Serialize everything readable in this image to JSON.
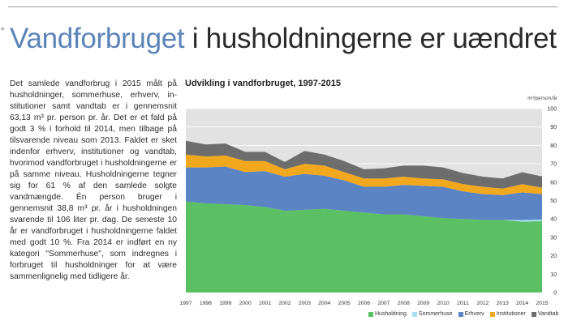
{
  "headline": {
    "accent": "Vandforbruget",
    "rest": " i husholdningerne er uændret",
    "accent_color": "#5b84b8"
  },
  "body_text": "Det samlede vandforbrug i 2015 målt på husholdninger, sommerhuse, erhverv, in­stitutioner samt vandtab er i gennemsnit 63,13 m³ pr. person pr. år. Det er et fald på godt 3 % i forhold til 2014, men tilba­ge på tilsvarende niveau som 2013. Fal­det er sket indenfor erhverv, institutioner og vandtab, hvorimod vandforbruget i hus­holdningerne er på samme niveau. Hus­holdningerne tegner sig for 61 % af den samlede solgte vandmængde. Én person bruger i gennemsnit 38,8 m³ pr. år i hus­holdningen svarende til 106 liter pr. dag. De seneste 10 år er vandforbruget i hus­holdningerne faldet med godt 10 %. Fra 2014 er indført en ny kategori \"Sommer­huse\", som indregnes i forbruget til hus­holdninger for at være sammenlignelig med tidligere år.",
  "chart_data": {
    "type": "area",
    "stacked": true,
    "title": "Udvikling i vandforbruget, 1997-2015",
    "ylabel": "m³/person/år",
    "ylim": [
      0,
      100
    ],
    "yticks": [
      0,
      10,
      20,
      30,
      40,
      50,
      60,
      70,
      80,
      90,
      100
    ],
    "grid": true,
    "legend_position": "bottom-right",
    "x": [
      "1997",
      "1998",
      "1999",
      "2000",
      "2001",
      "2002",
      "2003",
      "2004",
      "2005",
      "2006",
      "2007",
      "2008",
      "2009",
      "2010",
      "2011",
      "2012",
      "2013",
      "2014",
      "2015"
    ],
    "series": [
      {
        "name": "Husholdning",
        "color": "#5bc064",
        "values": [
          49.5,
          48.5,
          48,
          47.5,
          46.5,
          44.5,
          45,
          45.5,
          44.5,
          43.5,
          42.5,
          42.5,
          41.5,
          40.5,
          40,
          39.5,
          39.5,
          38.5,
          38.8
        ]
      },
      {
        "name": "Sommerhuse",
        "color": "#a6dff3",
        "values": [
          0,
          0,
          0,
          0,
          0,
          0,
          0,
          0,
          0,
          0,
          0,
          0,
          0,
          0,
          0,
          0,
          0,
          0.9,
          0.9
        ]
      },
      {
        "name": "Erhverv",
        "color": "#5b84c4",
        "values": [
          18.5,
          19.5,
          20.5,
          18,
          19.5,
          18.5,
          19.5,
          18,
          16.5,
          14,
          15,
          16,
          16.5,
          17,
          15,
          14,
          13.5,
          15,
          13.8
        ]
      },
      {
        "name": "Institutioner",
        "color": "#f2a81d",
        "values": [
          7,
          6,
          6,
          6,
          5.5,
          4,
          5.5,
          5.5,
          4.5,
          4.5,
          4.5,
          4.5,
          4,
          4,
          4,
          4,
          3.5,
          4.5,
          3.5
        ]
      },
      {
        "name": "Vandtab",
        "color": "#6d6d6d",
        "values": [
          7.5,
          6.5,
          6.5,
          5,
          5,
          4,
          7,
          6,
          6,
          5,
          5.5,
          6,
          7,
          6.5,
          6,
          5.5,
          5.5,
          6.5,
          6.1
        ]
      }
    ]
  }
}
